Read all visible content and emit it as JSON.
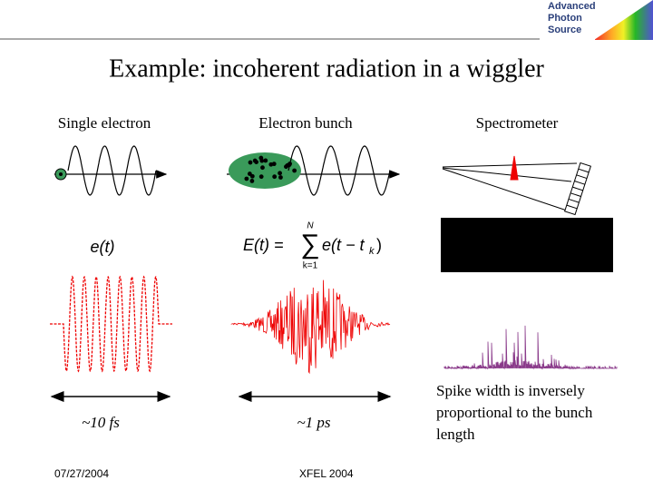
{
  "logo": {
    "lines": [
      "Advanced",
      "Photon",
      "Source"
    ]
  },
  "title": "Example: incoherent radiation in a wiggler",
  "columns": [
    "Single electron",
    "Electron bunch",
    "Spectrometer"
  ],
  "single_field": "e(t)",
  "formula": {
    "lhs": "E(t) =",
    "sigma": "∑",
    "upper": "N",
    "lower": "k=1",
    "body": "e(t − t",
    "sub": "k",
    "close": ")"
  },
  "durations": [
    "~10 fs",
    "~1 ps"
  ],
  "note": [
    "Spike width is inversely",
    "proportional to the bunch",
    "length"
  ],
  "footer": {
    "date": "07/27/2004",
    "event": "XFEL 2004"
  }
}
